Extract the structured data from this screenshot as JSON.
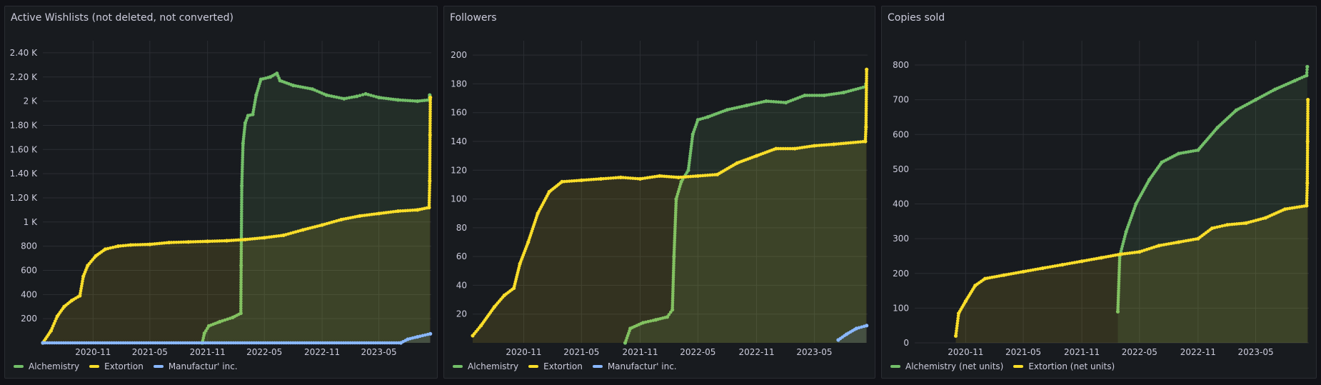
{
  "panels": [
    {
      "title": "Active Wishlists (not deleted, not converted)",
      "legend": [
        {
          "name": "Alchemistry",
          "color": "#73bf69"
        },
        {
          "name": "Extortion",
          "color": "#fade2a"
        },
        {
          "name": "Manufactur' inc.",
          "color": "#8ab8ff"
        }
      ]
    },
    {
      "title": "Followers",
      "legend": [
        {
          "name": "Alchemistry",
          "color": "#73bf69"
        },
        {
          "name": "Extortion",
          "color": "#fade2a"
        },
        {
          "name": "Manufactur' inc.",
          "color": "#8ab8ff"
        }
      ]
    },
    {
      "title": "Copies sold",
      "legend": [
        {
          "name": "Alchemistry (net units)",
          "color": "#73bf69"
        },
        {
          "name": "Extortion (net units)",
          "color": "#fade2a"
        }
      ]
    }
  ],
  "chart_data": [
    {
      "type": "line",
      "title": "Active Wishlists (not deleted, not converted)",
      "x_type": "date",
      "xlim": [
        "2020-05-25",
        "2023-10-15"
      ],
      "ylim": [
        0,
        2500
      ],
      "y_ticks": [
        200,
        400,
        600,
        800,
        1000,
        1200,
        1400,
        1600,
        1800,
        2000,
        2200,
        2400
      ],
      "y_tick_labels": [
        "200",
        "400",
        "600",
        "800",
        "1 K",
        "1.20 K",
        "1.40 K",
        "1.60 K",
        "1.80 K",
        "2 K",
        "2.20 K",
        "2.40 K"
      ],
      "x_ticks": [
        "2020-11-01",
        "2021-05-01",
        "2021-11-01",
        "2022-05-01",
        "2022-11-01",
        "2023-05-01"
      ],
      "x_tick_labels": [
        "2020-11",
        "2021-05",
        "2021-11",
        "2022-05",
        "2022-11",
        "2023-05"
      ],
      "grid": true,
      "legend_position": "bottom-left",
      "series": [
        {
          "name": "Alchemistry",
          "color": "#73bf69",
          "points": [
            [
              "2021-10-15",
              0
            ],
            [
              "2021-10-22",
              80
            ],
            [
              "2021-11-05",
              140
            ],
            [
              "2021-12-10",
              175
            ],
            [
              "2022-01-20",
              210
            ],
            [
              "2022-02-15",
              245
            ],
            [
              "2022-02-16",
              640
            ],
            [
              "2022-02-18",
              1300
            ],
            [
              "2022-02-22",
              1650
            ],
            [
              "2022-03-01",
              1820
            ],
            [
              "2022-03-10",
              1880
            ],
            [
              "2022-03-25",
              1890
            ],
            [
              "2022-04-05",
              2050
            ],
            [
              "2022-04-20",
              2180
            ],
            [
              "2022-05-20",
              2200
            ],
            [
              "2022-06-10",
              2230
            ],
            [
              "2022-06-20",
              2170
            ],
            [
              "2022-08-01",
              2130
            ],
            [
              "2022-10-01",
              2100
            ],
            [
              "2022-11-15",
              2050
            ],
            [
              "2023-01-10",
              2020
            ],
            [
              "2023-02-20",
              2040
            ],
            [
              "2023-03-20",
              2060
            ],
            [
              "2023-05-01",
              2030
            ],
            [
              "2023-07-01",
              2010
            ],
            [
              "2023-09-01",
              2000
            ],
            [
              "2023-10-08",
              2010
            ],
            [
              "2023-10-10",
              2050
            ]
          ]
        },
        {
          "name": "Extortion",
          "color": "#fade2a",
          "points": [
            [
              "2020-05-25",
              0
            ],
            [
              "2020-06-20",
              100
            ],
            [
              "2020-07-10",
              220
            ],
            [
              "2020-08-01",
              300
            ],
            [
              "2020-08-25",
              350
            ],
            [
              "2020-09-20",
              390
            ],
            [
              "2020-10-01",
              550
            ],
            [
              "2020-10-15",
              640
            ],
            [
              "2020-11-10",
              720
            ],
            [
              "2020-12-10",
              775
            ],
            [
              "2021-01-20",
              800
            ],
            [
              "2021-03-01",
              810
            ],
            [
              "2021-05-01",
              815
            ],
            [
              "2021-07-01",
              830
            ],
            [
              "2021-09-01",
              835
            ],
            [
              "2021-11-01",
              840
            ],
            [
              "2022-01-01",
              845
            ],
            [
              "2022-03-01",
              855
            ],
            [
              "2022-05-01",
              870
            ],
            [
              "2022-07-01",
              890
            ],
            [
              "2022-09-01",
              935
            ],
            [
              "2022-11-01",
              975
            ],
            [
              "2023-01-01",
              1020
            ],
            [
              "2023-03-01",
              1050
            ],
            [
              "2023-05-01",
              1070
            ],
            [
              "2023-07-01",
              1090
            ],
            [
              "2023-09-01",
              1100
            ],
            [
              "2023-10-08",
              1120
            ],
            [
              "2023-10-10",
              1340
            ],
            [
              "2023-10-11",
              1720
            ],
            [
              "2023-10-12",
              2030
            ]
          ]
        },
        {
          "name": "Manufactur' inc.",
          "color": "#8ab8ff",
          "points": [
            [
              "2020-05-25",
              0
            ],
            [
              "2023-07-10",
              0
            ],
            [
              "2023-08-01",
              30
            ],
            [
              "2023-09-01",
              50
            ],
            [
              "2023-10-12",
              75
            ]
          ]
        }
      ]
    },
    {
      "type": "line",
      "title": "Followers",
      "x_type": "date",
      "xlim": [
        "2020-05-25",
        "2023-10-15"
      ],
      "ylim": [
        0,
        210
      ],
      "y_ticks": [
        20,
        40,
        60,
        80,
        100,
        120,
        140,
        160,
        180,
        200
      ],
      "y_tick_labels": [
        "20",
        "40",
        "60",
        "80",
        "100",
        "120",
        "140",
        "160",
        "180",
        "200"
      ],
      "x_ticks": [
        "2020-11-01",
        "2021-05-01",
        "2021-11-01",
        "2022-05-01",
        "2022-11-01",
        "2023-05-01"
      ],
      "x_tick_labels": [
        "2020-11",
        "2021-05",
        "2021-11",
        "2022-05",
        "2022-11",
        "2023-05"
      ],
      "grid": true,
      "legend_position": "bottom-left",
      "series": [
        {
          "name": "Alchemistry",
          "color": "#73bf69",
          "points": [
            [
              "2021-09-15",
              0
            ],
            [
              "2021-10-01",
              10
            ],
            [
              "2021-11-10",
              14
            ],
            [
              "2021-12-20",
              16
            ],
            [
              "2022-01-25",
              18
            ],
            [
              "2022-02-10",
              23
            ],
            [
              "2022-02-15",
              60
            ],
            [
              "2022-02-22",
              100
            ],
            [
              "2022-03-10",
              112
            ],
            [
              "2022-04-01",
              120
            ],
            [
              "2022-04-15",
              145
            ],
            [
              "2022-05-01",
              155
            ],
            [
              "2022-06-01",
              157
            ],
            [
              "2022-08-01",
              162
            ],
            [
              "2022-10-01",
              165
            ],
            [
              "2022-12-01",
              168
            ],
            [
              "2023-02-01",
              167
            ],
            [
              "2023-04-01",
              172
            ],
            [
              "2023-06-01",
              172
            ],
            [
              "2023-08-01",
              174
            ],
            [
              "2023-10-08",
              178
            ],
            [
              "2023-10-10",
              180
            ]
          ]
        },
        {
          "name": "Extortion",
          "color": "#fade2a",
          "points": [
            [
              "2020-05-25",
              5
            ],
            [
              "2020-06-20",
              12
            ],
            [
              "2020-08-01",
              25
            ],
            [
              "2020-09-01",
              33
            ],
            [
              "2020-10-01",
              38
            ],
            [
              "2020-10-20",
              55
            ],
            [
              "2020-11-15",
              70
            ],
            [
              "2020-12-15",
              90
            ],
            [
              "2021-01-20",
              105
            ],
            [
              "2021-03-01",
              112
            ],
            [
              "2021-05-01",
              113
            ],
            [
              "2021-07-01",
              114
            ],
            [
              "2021-09-01",
              115
            ],
            [
              "2021-11-01",
              114
            ],
            [
              "2022-01-01",
              116
            ],
            [
              "2022-03-01",
              115
            ],
            [
              "2022-05-01",
              116
            ],
            [
              "2022-07-01",
              117
            ],
            [
              "2022-09-01",
              125
            ],
            [
              "2022-11-01",
              130
            ],
            [
              "2023-01-01",
              135
            ],
            [
              "2023-03-01",
              135
            ],
            [
              "2023-05-01",
              137
            ],
            [
              "2023-07-01",
              138
            ],
            [
              "2023-10-08",
              140
            ],
            [
              "2023-10-10",
              150
            ],
            [
              "2023-10-12",
              190
            ]
          ]
        },
        {
          "name": "Manufactur' inc.",
          "color": "#8ab8ff",
          "points": [
            [
              "2023-07-15",
              2
            ],
            [
              "2023-08-10",
              6
            ],
            [
              "2023-09-10",
              10
            ],
            [
              "2023-10-12",
              12
            ]
          ]
        }
      ]
    },
    {
      "type": "line",
      "title": "Copies sold",
      "x_type": "date",
      "xlim": [
        "2020-05-25",
        "2023-10-15"
      ],
      "ylim": [
        0,
        870
      ],
      "y_ticks": [
        0,
        100,
        200,
        300,
        400,
        500,
        600,
        700,
        800
      ],
      "y_tick_labels": [
        "0",
        "100",
        "200",
        "300",
        "400",
        "500",
        "600",
        "700",
        "800"
      ],
      "x_ticks": [
        "2020-11-01",
        "2021-05-01",
        "2021-11-01",
        "2022-05-01",
        "2022-11-01",
        "2023-05-01"
      ],
      "x_tick_labels": [
        "2020-11",
        "2021-05",
        "2021-11",
        "2022-05",
        "2022-11",
        "2023-05"
      ],
      "grid": true,
      "legend_position": "bottom-left",
      "series": [
        {
          "name": "Alchemistry (net units)",
          "color": "#73bf69",
          "points": [
            [
              "2022-02-22",
              90
            ],
            [
              "2022-02-28",
              250
            ],
            [
              "2022-03-20",
              320
            ],
            [
              "2022-04-20",
              400
            ],
            [
              "2022-06-01",
              470
            ],
            [
              "2022-07-10",
              520
            ],
            [
              "2022-09-01",
              545
            ],
            [
              "2022-11-01",
              555
            ],
            [
              "2023-01-01",
              620
            ],
            [
              "2023-03-01",
              670
            ],
            [
              "2023-05-01",
              700
            ],
            [
              "2023-07-01",
              730
            ],
            [
              "2023-09-01",
              755
            ],
            [
              "2023-10-08",
              770
            ],
            [
              "2023-10-10",
              795
            ]
          ]
        },
        {
          "name": "Extortion (net units)",
          "color": "#fade2a",
          "points": [
            [
              "2020-10-01",
              20
            ],
            [
              "2020-10-10",
              85
            ],
            [
              "2020-11-01",
              120
            ],
            [
              "2020-12-01",
              165
            ],
            [
              "2021-01-01",
              185
            ],
            [
              "2021-03-01",
              195
            ],
            [
              "2021-05-01",
              205
            ],
            [
              "2021-07-01",
              215
            ],
            [
              "2021-09-01",
              225
            ],
            [
              "2021-11-01",
              235
            ],
            [
              "2022-01-01",
              245
            ],
            [
              "2022-03-01",
              255
            ],
            [
              "2022-05-01",
              262
            ],
            [
              "2022-07-01",
              280
            ],
            [
              "2022-09-01",
              290
            ],
            [
              "2022-11-01",
              300
            ],
            [
              "2022-12-15",
              330
            ],
            [
              "2023-02-01",
              340
            ],
            [
              "2023-04-01",
              345
            ],
            [
              "2023-06-01",
              360
            ],
            [
              "2023-08-01",
              385
            ],
            [
              "2023-10-08",
              395
            ],
            [
              "2023-10-10",
              460
            ],
            [
              "2023-10-11",
              580
            ],
            [
              "2023-10-12",
              700
            ]
          ]
        }
      ]
    }
  ]
}
